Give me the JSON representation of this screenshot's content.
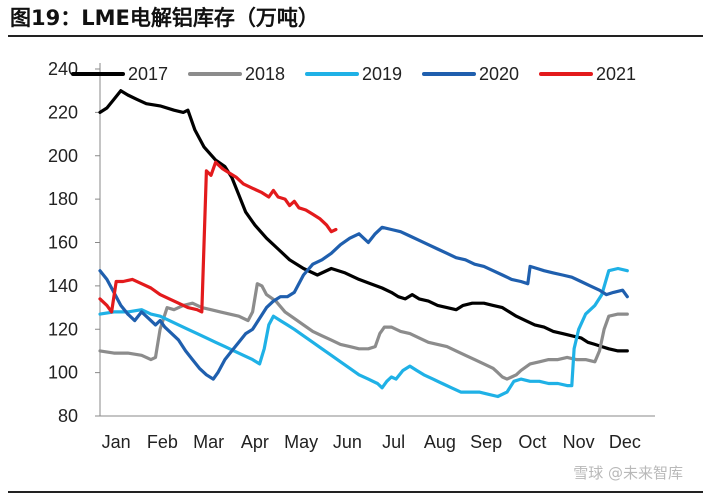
{
  "title": "图19：LME电解铝库存（万吨）",
  "watermark": "雪球 @未来智库",
  "chart_data": {
    "type": "line",
    "title": "图19：LME电解铝库存（万吨）",
    "xlabel": "",
    "ylabel": "",
    "x_ticks": [
      "Jan",
      "Feb",
      "Mar",
      "Apr",
      "May",
      "Jun",
      "Jul",
      "Aug",
      "Sep",
      "Oct",
      "Nov",
      "Dec"
    ],
    "x_domain": [
      0,
      12
    ],
    "ylim": [
      80,
      240
    ],
    "y_ticks": [
      80,
      100,
      120,
      140,
      160,
      180,
      200,
      220,
      240
    ],
    "grid": false,
    "legend_position": "top",
    "series": [
      {
        "name": "2017",
        "color": "#000000",
        "points": [
          [
            0,
            220
          ],
          [
            0.15,
            222
          ],
          [
            0.3,
            226
          ],
          [
            0.45,
            230
          ],
          [
            0.6,
            228
          ],
          [
            0.8,
            226
          ],
          [
            1.0,
            224
          ],
          [
            1.3,
            223
          ],
          [
            1.6,
            221
          ],
          [
            1.8,
            220
          ],
          [
            1.9,
            221
          ],
          [
            2.05,
            212
          ],
          [
            2.25,
            204
          ],
          [
            2.5,
            198
          ],
          [
            2.7,
            195
          ],
          [
            2.85,
            190
          ],
          [
            3.0,
            182
          ],
          [
            3.15,
            174
          ],
          [
            3.35,
            168
          ],
          [
            3.6,
            162
          ],
          [
            3.85,
            157
          ],
          [
            4.1,
            152
          ],
          [
            4.4,
            148
          ],
          [
            4.7,
            145
          ],
          [
            5.0,
            148
          ],
          [
            5.3,
            146
          ],
          [
            5.6,
            143
          ],
          [
            5.85,
            141
          ],
          [
            6.1,
            139
          ],
          [
            6.3,
            137
          ],
          [
            6.45,
            135
          ],
          [
            6.6,
            134
          ],
          [
            6.75,
            136
          ],
          [
            6.9,
            134
          ],
          [
            7.1,
            133
          ],
          [
            7.3,
            131
          ],
          [
            7.5,
            130
          ],
          [
            7.7,
            129
          ],
          [
            7.85,
            131
          ],
          [
            8.05,
            132
          ],
          [
            8.3,
            132
          ],
          [
            8.5,
            131
          ],
          [
            8.7,
            130
          ],
          [
            8.85,
            128
          ],
          [
            9.0,
            126
          ],
          [
            9.2,
            124
          ],
          [
            9.4,
            122
          ],
          [
            9.6,
            121
          ],
          [
            9.8,
            119
          ],
          [
            10.0,
            118
          ],
          [
            10.2,
            117
          ],
          [
            10.4,
            116
          ],
          [
            10.55,
            114
          ],
          [
            10.7,
            113
          ],
          [
            10.85,
            112
          ],
          [
            11.0,
            111
          ],
          [
            11.2,
            110
          ],
          [
            11.4,
            110
          ]
        ]
      },
      {
        "name": "2018",
        "color": "#8c8c8c",
        "points": [
          [
            0,
            110
          ],
          [
            0.3,
            109
          ],
          [
            0.6,
            109
          ],
          [
            0.9,
            108
          ],
          [
            1.0,
            107
          ],
          [
            1.1,
            106
          ],
          [
            1.2,
            107
          ],
          [
            1.3,
            120
          ],
          [
            1.45,
            130
          ],
          [
            1.6,
            129
          ],
          [
            1.8,
            131
          ],
          [
            2.0,
            132
          ],
          [
            2.2,
            130
          ],
          [
            2.4,
            129
          ],
          [
            2.6,
            128
          ],
          [
            2.8,
            127
          ],
          [
            3.0,
            126
          ],
          [
            3.2,
            124
          ],
          [
            3.3,
            128
          ],
          [
            3.4,
            141
          ],
          [
            3.5,
            140
          ],
          [
            3.6,
            136
          ],
          [
            3.8,
            133
          ],
          [
            4.0,
            128
          ],
          [
            4.2,
            125
          ],
          [
            4.4,
            122
          ],
          [
            4.6,
            119
          ],
          [
            4.8,
            117
          ],
          [
            5.0,
            115
          ],
          [
            5.2,
            113
          ],
          [
            5.4,
            112
          ],
          [
            5.6,
            111
          ],
          [
            5.8,
            111
          ],
          [
            5.95,
            112
          ],
          [
            6.05,
            118
          ],
          [
            6.15,
            121
          ],
          [
            6.3,
            121
          ],
          [
            6.5,
            119
          ],
          [
            6.7,
            118
          ],
          [
            6.9,
            116
          ],
          [
            7.1,
            114
          ],
          [
            7.3,
            113
          ],
          [
            7.5,
            112
          ],
          [
            7.7,
            110
          ],
          [
            7.9,
            108
          ],
          [
            8.1,
            106
          ],
          [
            8.3,
            104
          ],
          [
            8.5,
            102
          ],
          [
            8.6,
            100
          ],
          [
            8.7,
            98
          ],
          [
            8.8,
            97
          ],
          [
            8.9,
            98
          ],
          [
            9.0,
            99
          ],
          [
            9.1,
            101
          ],
          [
            9.3,
            104
          ],
          [
            9.5,
            105
          ],
          [
            9.7,
            106
          ],
          [
            9.9,
            106
          ],
          [
            10.1,
            107
          ],
          [
            10.3,
            106
          ],
          [
            10.5,
            106
          ],
          [
            10.7,
            105
          ],
          [
            10.8,
            110
          ],
          [
            10.9,
            120
          ],
          [
            11.0,
            126
          ],
          [
            11.2,
            127
          ],
          [
            11.4,
            127
          ]
        ]
      },
      {
        "name": "2019",
        "color": "#1fb1e6",
        "points": [
          [
            0,
            127
          ],
          [
            0.3,
            128
          ],
          [
            0.6,
            128
          ],
          [
            0.9,
            129
          ],
          [
            1.1,
            127
          ],
          [
            1.3,
            126
          ],
          [
            1.5,
            124
          ],
          [
            1.7,
            122
          ],
          [
            1.9,
            120
          ],
          [
            2.1,
            118
          ],
          [
            2.3,
            116
          ],
          [
            2.5,
            114
          ],
          [
            2.7,
            112
          ],
          [
            2.9,
            110
          ],
          [
            3.1,
            108
          ],
          [
            3.3,
            106
          ],
          [
            3.45,
            104
          ],
          [
            3.55,
            111
          ],
          [
            3.65,
            122
          ],
          [
            3.75,
            126
          ],
          [
            3.9,
            124
          ],
          [
            4.05,
            122
          ],
          [
            4.2,
            120
          ],
          [
            4.4,
            117
          ],
          [
            4.6,
            114
          ],
          [
            4.8,
            111
          ],
          [
            5.0,
            108
          ],
          [
            5.2,
            105
          ],
          [
            5.4,
            102
          ],
          [
            5.6,
            99
          ],
          [
            5.8,
            97
          ],
          [
            6.0,
            95
          ],
          [
            6.1,
            93
          ],
          [
            6.2,
            96
          ],
          [
            6.3,
            98
          ],
          [
            6.4,
            97
          ],
          [
            6.55,
            101
          ],
          [
            6.7,
            103
          ],
          [
            6.85,
            101
          ],
          [
            7.0,
            99
          ],
          [
            7.2,
            97
          ],
          [
            7.4,
            95
          ],
          [
            7.6,
            93
          ],
          [
            7.8,
            91
          ],
          [
            8.0,
            91
          ],
          [
            8.2,
            91
          ],
          [
            8.4,
            90
          ],
          [
            8.6,
            89
          ],
          [
            8.8,
            91
          ],
          [
            8.95,
            96
          ],
          [
            9.1,
            97
          ],
          [
            9.3,
            96
          ],
          [
            9.5,
            96
          ],
          [
            9.7,
            95
          ],
          [
            9.9,
            95
          ],
          [
            10.1,
            94
          ],
          [
            10.2,
            94
          ],
          [
            10.25,
            111
          ],
          [
            10.35,
            120
          ],
          [
            10.5,
            127
          ],
          [
            10.7,
            131
          ],
          [
            10.85,
            136
          ],
          [
            11.0,
            147
          ],
          [
            11.2,
            148
          ],
          [
            11.4,
            147
          ]
        ]
      },
      {
        "name": "2020",
        "color": "#1f5fae",
        "points": [
          [
            0,
            147
          ],
          [
            0.15,
            143
          ],
          [
            0.3,
            137
          ],
          [
            0.45,
            131
          ],
          [
            0.6,
            127
          ],
          [
            0.75,
            124
          ],
          [
            0.9,
            128
          ],
          [
            1.05,
            125
          ],
          [
            1.2,
            122
          ],
          [
            1.3,
            124
          ],
          [
            1.4,
            121
          ],
          [
            1.55,
            118
          ],
          [
            1.7,
            115
          ],
          [
            1.85,
            110
          ],
          [
            2.0,
            106
          ],
          [
            2.15,
            102
          ],
          [
            2.3,
            99
          ],
          [
            2.45,
            97
          ],
          [
            2.55,
            100
          ],
          [
            2.7,
            106
          ],
          [
            2.85,
            110
          ],
          [
            3.0,
            114
          ],
          [
            3.15,
            118
          ],
          [
            3.3,
            120
          ],
          [
            3.45,
            125
          ],
          [
            3.6,
            130
          ],
          [
            3.75,
            133
          ],
          [
            3.9,
            135
          ],
          [
            4.05,
            135
          ],
          [
            4.2,
            137
          ],
          [
            4.4,
            145
          ],
          [
            4.6,
            150
          ],
          [
            4.8,
            152
          ],
          [
            5.0,
            155
          ],
          [
            5.2,
            159
          ],
          [
            5.4,
            162
          ],
          [
            5.6,
            164
          ],
          [
            5.8,
            160
          ],
          [
            5.95,
            164
          ],
          [
            6.1,
            167
          ],
          [
            6.3,
            166
          ],
          [
            6.5,
            165
          ],
          [
            6.7,
            163
          ],
          [
            6.9,
            161
          ],
          [
            7.1,
            159
          ],
          [
            7.3,
            157
          ],
          [
            7.5,
            155
          ],
          [
            7.7,
            153
          ],
          [
            7.9,
            152
          ],
          [
            8.1,
            150
          ],
          [
            8.3,
            149
          ],
          [
            8.5,
            147
          ],
          [
            8.7,
            145
          ],
          [
            8.9,
            143
          ],
          [
            9.1,
            142
          ],
          [
            9.25,
            141
          ],
          [
            9.3,
            149
          ],
          [
            9.45,
            148
          ],
          [
            9.6,
            147
          ],
          [
            9.8,
            146
          ],
          [
            10.0,
            145
          ],
          [
            10.2,
            144
          ],
          [
            10.4,
            142
          ],
          [
            10.6,
            140
          ],
          [
            10.8,
            138
          ],
          [
            10.95,
            136
          ],
          [
            11.1,
            137
          ],
          [
            11.3,
            138
          ],
          [
            11.4,
            135
          ]
        ]
      },
      {
        "name": "2021",
        "color": "#e31a1c",
        "points": [
          [
            0,
            134
          ],
          [
            0.15,
            131
          ],
          [
            0.25,
            128
          ],
          [
            0.35,
            142
          ],
          [
            0.5,
            142
          ],
          [
            0.7,
            143
          ],
          [
            0.9,
            141
          ],
          [
            1.1,
            139
          ],
          [
            1.3,
            136
          ],
          [
            1.5,
            134
          ],
          [
            1.7,
            132
          ],
          [
            1.9,
            130
          ],
          [
            2.1,
            129
          ],
          [
            2.2,
            128
          ],
          [
            2.3,
            193
          ],
          [
            2.4,
            191
          ],
          [
            2.5,
            197
          ],
          [
            2.65,
            194
          ],
          [
            2.8,
            192
          ],
          [
            2.95,
            190
          ],
          [
            3.1,
            187
          ],
          [
            3.3,
            185
          ],
          [
            3.5,
            183
          ],
          [
            3.65,
            181
          ],
          [
            3.75,
            184
          ],
          [
            3.85,
            181
          ],
          [
            4.0,
            180
          ],
          [
            4.1,
            177
          ],
          [
            4.2,
            179
          ],
          [
            4.3,
            176
          ],
          [
            4.45,
            175
          ],
          [
            4.6,
            173
          ],
          [
            4.75,
            171
          ],
          [
            4.9,
            168
          ],
          [
            5.0,
            165
          ],
          [
            5.1,
            166
          ]
        ]
      }
    ]
  }
}
